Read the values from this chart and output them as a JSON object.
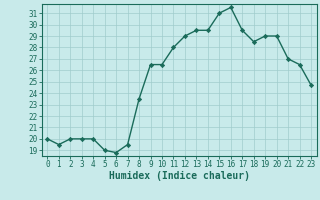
{
  "x": [
    0,
    1,
    2,
    3,
    4,
    5,
    6,
    7,
    8,
    9,
    10,
    11,
    12,
    13,
    14,
    15,
    16,
    17,
    18,
    19,
    20,
    21,
    22,
    23
  ],
  "y": [
    20.0,
    19.5,
    20.0,
    20.0,
    20.0,
    19.0,
    18.8,
    19.5,
    23.5,
    26.5,
    26.5,
    28.0,
    29.0,
    29.5,
    29.5,
    31.0,
    31.5,
    29.5,
    28.5,
    29.0,
    29.0,
    27.0,
    26.5,
    24.7
  ],
  "line_color": "#1a6b5a",
  "marker": "D",
  "marker_size": 2.2,
  "bg_color": "#c8eaea",
  "grid_color": "#a0cccc",
  "xlabel": "Humidex (Indice chaleur)",
  "xlim": [
    -0.5,
    23.5
  ],
  "ylim": [
    18.5,
    31.8
  ],
  "yticks": [
    19,
    20,
    21,
    22,
    23,
    24,
    25,
    26,
    27,
    28,
    29,
    30,
    31
  ],
  "xticks": [
    0,
    1,
    2,
    3,
    4,
    5,
    6,
    7,
    8,
    9,
    10,
    11,
    12,
    13,
    14,
    15,
    16,
    17,
    18,
    19,
    20,
    21,
    22,
    23
  ],
  "tick_label_fontsize": 5.5,
  "xlabel_fontsize": 7.0,
  "tick_color": "#1a6b5a",
  "axis_color": "#1a6b5a",
  "linewidth": 1.0
}
